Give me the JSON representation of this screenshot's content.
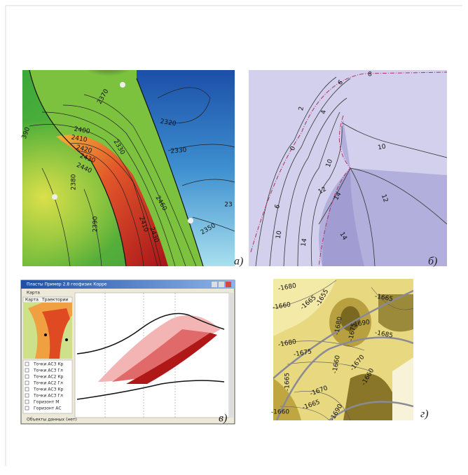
{
  "panels": [
    {
      "label": "а)",
      "contour_labels": [
        "390",
        "2400",
        "2410",
        "2420",
        "2430",
        "2440",
        "2370",
        "2390",
        "2380",
        "2460",
        "2410",
        "2430",
        "2320",
        "2330",
        "2330",
        "2350",
        "23"
      ]
    },
    {
      "label": "б)",
      "contour_labels": [
        "8",
        "6",
        "4",
        "2",
        "0",
        "10",
        "12",
        "14",
        "6",
        "10",
        "14",
        "12",
        "14",
        "10"
      ]
    },
    {
      "label": "в)",
      "window": {
        "title": "Пласты Пример 2.8 геофизик Корре",
        "top_item": "Карта",
        "tabs": [
          "Карта",
          "Траектории"
        ],
        "items": [
          "Точки АС3 Кр",
          "Точки АС3 Гл",
          "Точки АС2 Кр",
          "Точки АС2 Гл",
          "Точки АС3 Кр",
          "Точки АС3 Гл",
          "Горизонт М",
          "Горизонт АС"
        ],
        "footer": "Объекты данных (нет)"
      }
    },
    {
      "label": "г)",
      "contour_labels": [
        "-1680",
        "-1660",
        "-1665",
        "-1655",
        "-1680",
        "-1675",
        "-1690",
        "-1685",
        "-1665",
        "-1680",
        "-1675",
        "-1660",
        "-1665",
        "-1670",
        "-1670",
        "-1660",
        "-1665",
        "-1690",
        "-1660"
      ]
    }
  ]
}
